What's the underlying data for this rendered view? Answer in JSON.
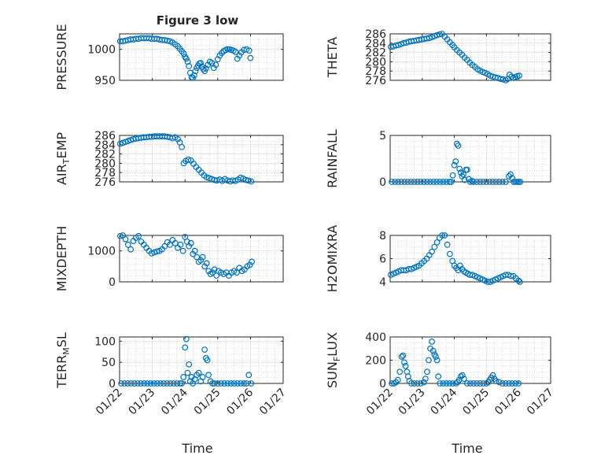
{
  "title": "Figure 3 low",
  "xlabel": "Time",
  "x_ticks": [
    "01/22",
    "01/23",
    "01/24",
    "01/25",
    "01/26",
    "01/27"
  ],
  "colors": {
    "marker": "#0072BD",
    "axis": "#262626",
    "grid": "#dfdfdf",
    "minor_grid": "#bdbdbd"
  },
  "chart_data": [
    {
      "type": "scatter",
      "ylabel": "PRESSURE",
      "ylim": [
        950,
        1025
      ],
      "yticks": [
        950,
        1000
      ],
      "grid": true,
      "x": [
        0.02,
        0.1,
        0.18,
        0.26,
        0.34,
        0.42,
        0.5,
        0.58,
        0.66,
        0.74,
        0.82,
        0.9,
        0.98,
        1.06,
        1.14,
        1.22,
        1.3,
        1.38,
        1.46,
        1.54,
        1.62,
        1.7,
        1.78,
        1.84,
        1.9,
        1.96,
        2.0,
        2.04,
        2.08,
        2.12,
        2.16,
        2.2,
        2.24,
        2.28,
        2.32,
        2.36,
        2.4,
        2.44,
        2.48,
        2.52,
        2.56,
        2.6,
        2.64,
        2.7,
        2.76,
        2.82,
        2.88,
        2.94,
        3.0,
        3.06,
        3.12,
        3.18,
        3.24,
        3.3,
        3.36,
        3.42,
        3.48,
        3.54,
        3.6,
        3.66,
        3.72,
        3.8,
        3.88,
        3.96,
        4.0
      ],
      "y": [
        1013,
        1013,
        1014,
        1015,
        1016,
        1016,
        1017,
        1017,
        1018,
        1018,
        1018,
        1018,
        1017,
        1017,
        1017,
        1016,
        1015,
        1015,
        1014,
        1013,
        1011,
        1008,
        1005,
        1001,
        997,
        993,
        988,
        985,
        980,
        973,
        962,
        955,
        954,
        958,
        965,
        970,
        974,
        977,
        978,
        972,
        968,
        965,
        969,
        975,
        980,
        978,
        970,
        975,
        984,
        990,
        994,
        997,
        999,
        1000,
        1000,
        999,
        998,
        996,
        985,
        990,
        995,
        999,
        1000,
        998,
        986
      ]
    },
    {
      "type": "scatter",
      "ylabel": "THETA",
      "ylim": [
        276,
        286
      ],
      "yticks": [
        276,
        278,
        280,
        282,
        284,
        286
      ],
      "grid": true,
      "x": [
        0.02,
        0.1,
        0.18,
        0.26,
        0.34,
        0.42,
        0.5,
        0.58,
        0.66,
        0.74,
        0.82,
        0.9,
        0.98,
        1.06,
        1.14,
        1.22,
        1.3,
        1.38,
        1.46,
        1.54,
        1.62,
        1.7,
        1.78,
        1.86,
        1.94,
        2.0,
        2.08,
        2.16,
        2.24,
        2.32,
        2.4,
        2.48,
        2.56,
        2.64,
        2.72,
        2.8,
        2.88,
        2.96,
        3.04,
        3.12,
        3.2,
        3.28,
        3.36,
        3.44,
        3.52,
        3.6,
        3.66,
        3.72,
        3.78,
        3.84,
        3.9,
        3.96,
        4.02
      ],
      "y": [
        283.2,
        283.3,
        283.5,
        283.6,
        283.8,
        284.0,
        284.1,
        284.3,
        284.4,
        284.5,
        284.6,
        284.7,
        284.8,
        284.9,
        285.0,
        285.1,
        285.3,
        285.5,
        285.7,
        285.9,
        286.0,
        285.4,
        284.8,
        284.2,
        283.6,
        283.1,
        282.5,
        282.0,
        281.5,
        280.9,
        280.4,
        279.8,
        279.3,
        278.9,
        278.4,
        278.1,
        277.8,
        277.6,
        277.3,
        277.0,
        276.8,
        276.6,
        276.5,
        276.3,
        276.2,
        276.0,
        276.3,
        277.2,
        276.8,
        276.5,
        276.7,
        276.9,
        277.0
      ]
    },
    {
      "type": "scatter",
      "ylabel": "AIR_TEMP",
      "ylim": [
        276,
        286
      ],
      "yticks": [
        276,
        278,
        280,
        282,
        284,
        286
      ],
      "grid": true,
      "x": [
        0.02,
        0.1,
        0.18,
        0.26,
        0.34,
        0.42,
        0.5,
        0.58,
        0.66,
        0.74,
        0.82,
        0.9,
        0.98,
        1.06,
        1.14,
        1.22,
        1.3,
        1.38,
        1.46,
        1.54,
        1.62,
        1.7,
        1.78,
        1.84,
        1.9,
        1.96,
        2.02,
        2.1,
        2.18,
        2.26,
        2.34,
        2.42,
        2.5,
        2.58,
        2.66,
        2.74,
        2.82,
        2.9,
        2.98,
        3.06,
        3.14,
        3.22,
        3.3,
        3.38,
        3.46,
        3.54,
        3.62,
        3.7,
        3.78,
        3.86,
        3.94,
        4.02
      ],
      "y": [
        284.2,
        284.4,
        284.6,
        284.8,
        285.0,
        285.2,
        285.3,
        285.4,
        285.5,
        285.6,
        285.6,
        285.7,
        285.7,
        285.8,
        285.8,
        285.8,
        285.8,
        285.8,
        285.7,
        285.6,
        285.4,
        285.6,
        285.2,
        284.5,
        283.5,
        280.0,
        280.5,
        280.8,
        280.6,
        279.9,
        279.2,
        278.6,
        278.0,
        277.4,
        277.0,
        276.8,
        276.6,
        276.4,
        276.3,
        276.5,
        276.2,
        276.6,
        276.3,
        276.1,
        276.3,
        276.2,
        276.5,
        276.9,
        276.7,
        276.4,
        276.3,
        276.1
      ]
    },
    {
      "type": "scatter",
      "ylabel": "RAINFALL",
      "ylim": [
        0,
        5
      ],
      "yticks": [
        0,
        5
      ],
      "grid": true,
      "x": [
        0.05,
        0.15,
        0.25,
        0.35,
        0.45,
        0.55,
        0.65,
        0.75,
        0.85,
        0.95,
        1.05,
        1.15,
        1.25,
        1.35,
        1.45,
        1.55,
        1.65,
        1.75,
        1.85,
        1.9,
        1.95,
        2.0,
        2.04,
        2.08,
        2.12,
        2.16,
        2.2,
        2.24,
        2.28,
        2.32,
        2.36,
        2.4,
        2.45,
        2.5,
        2.55,
        2.6,
        2.7,
        2.8,
        2.9,
        3.0,
        3.1,
        3.2,
        3.3,
        3.4,
        3.5,
        3.6,
        3.7,
        3.75,
        3.8,
        3.85,
        3.9,
        3.95,
        4.0,
        4.05
      ],
      "y": [
        0,
        0,
        0,
        0,
        0,
        0,
        0,
        0,
        0,
        0,
        0,
        0,
        0,
        0,
        0,
        0,
        0,
        0,
        0,
        0,
        0.7,
        1.8,
        2.2,
        4.1,
        3.9,
        1.4,
        1.0,
        0.6,
        0.8,
        0.2,
        1.3,
        1.3,
        0.3,
        0,
        0.1,
        0,
        0,
        0,
        0,
        0,
        0,
        0,
        0,
        0,
        0,
        0,
        0.6,
        0.8,
        0.4,
        0,
        0,
        0,
        0,
        0
      ]
    },
    {
      "type": "scatter",
      "ylabel": "MIXDEPTH",
      "ylim": [
        0,
        1500
      ],
      "yticks": [
        0,
        1000
      ],
      "grid": true,
      "x": [
        0.02,
        0.1,
        0.18,
        0.26,
        0.34,
        0.42,
        0.5,
        0.58,
        0.66,
        0.74,
        0.82,
        0.9,
        0.98,
        1.06,
        1.14,
        1.22,
        1.3,
        1.38,
        1.46,
        1.54,
        1.62,
        1.7,
        1.78,
        1.86,
        1.94,
        2.0,
        2.06,
        2.12,
        2.18,
        2.24,
        2.3,
        2.36,
        2.42,
        2.48,
        2.54,
        2.6,
        2.66,
        2.72,
        2.78,
        2.84,
        2.9,
        2.96,
        3.02,
        3.1,
        3.18,
        3.26,
        3.34,
        3.42,
        3.5,
        3.58,
        3.66,
        3.74,
        3.82,
        3.9,
        3.98,
        4.04
      ],
      "y": [
        1480,
        1500,
        1380,
        1200,
        1050,
        1320,
        1420,
        1480,
        1300,
        1200,
        1100,
        1000,
        920,
        950,
        980,
        1000,
        1050,
        1150,
        1280,
        1200,
        1350,
        1250,
        1100,
        1200,
        1000,
        1450,
        1300,
        1150,
        1250,
        900,
        1000,
        800,
        650,
        700,
        800,
        500,
        600,
        350,
        250,
        300,
        400,
        200,
        350,
        300,
        250,
        300,
        200,
        300,
        350,
        300,
        450,
        350,
        400,
        500,
        550,
        650
      ]
    },
    {
      "type": "scatter",
      "ylabel": "H2OMIXRA",
      "ylim": [
        4,
        8
      ],
      "yticks": [
        4,
        6,
        8
      ],
      "grid": true,
      "x": [
        0.02,
        0.1,
        0.18,
        0.26,
        0.34,
        0.42,
        0.5,
        0.58,
        0.66,
        0.74,
        0.82,
        0.9,
        0.98,
        1.06,
        1.14,
        1.22,
        1.3,
        1.38,
        1.46,
        1.54,
        1.62,
        1.7,
        1.78,
        1.86,
        1.94,
        2.0,
        2.06,
        2.12,
        2.18,
        2.24,
        2.3,
        2.36,
        2.42,
        2.48,
        2.56,
        2.64,
        2.72,
        2.8,
        2.88,
        2.96,
        3.04,
        3.12,
        3.2,
        3.28,
        3.36,
        3.44,
        3.52,
        3.6,
        3.68,
        3.76,
        3.84,
        3.92,
        4.0,
        4.04
      ],
      "y": [
        4.6,
        4.7,
        4.8,
        4.9,
        5.0,
        5.0,
        5.0,
        5.1,
        5.1,
        5.2,
        5.3,
        5.4,
        5.6,
        5.8,
        6.0,
        6.3,
        6.6,
        7.0,
        7.4,
        7.8,
        8.0,
        8.0,
        7.2,
        6.4,
        5.8,
        5.4,
        5.2,
        5.0,
        5.4,
        5.1,
        4.9,
        4.8,
        4.7,
        4.6,
        4.6,
        4.5,
        4.4,
        4.3,
        4.2,
        4.1,
        4.0,
        4.0,
        4.1,
        4.2,
        4.3,
        4.4,
        4.5,
        4.6,
        4.6,
        4.5,
        4.5,
        4.3,
        4.1,
        4.0
      ]
    },
    {
      "type": "scatter",
      "ylabel": "TERR_MSL",
      "ylim": [
        0,
        110
      ],
      "yticks": [
        0,
        50,
        100
      ],
      "grid": true,
      "x": [
        0.05,
        0.15,
        0.25,
        0.35,
        0.45,
        0.55,
        0.65,
        0.75,
        0.85,
        0.95,
        1.05,
        1.15,
        1.25,
        1.35,
        1.45,
        1.55,
        1.65,
        1.75,
        1.85,
        1.9,
        1.95,
        2.0,
        2.04,
        2.08,
        2.12,
        2.16,
        2.2,
        2.24,
        2.3,
        2.36,
        2.42,
        2.48,
        2.54,
        2.6,
        2.64,
        2.68,
        2.72,
        2.78,
        2.84,
        2.9,
        3.0,
        3.1,
        3.2,
        3.3,
        3.4,
        3.5,
        3.6,
        3.7,
        3.8,
        3.88,
        3.95,
        4.02
      ],
      "y": [
        0,
        0,
        0,
        0,
        0,
        0,
        0,
        0,
        0,
        0,
        0,
        0,
        0,
        0,
        0,
        0,
        0,
        0,
        0,
        0,
        15,
        85,
        105,
        25,
        45,
        5,
        15,
        0,
        10,
        20,
        25,
        5,
        15,
        80,
        60,
        55,
        20,
        5,
        0,
        0,
        0,
        0,
        0,
        0,
        0,
        0,
        0,
        0,
        0,
        0,
        20,
        0
      ]
    },
    {
      "type": "scatter",
      "ylabel": "SUN_FLUX",
      "ylim": [
        0,
        400
      ],
      "yticks": [
        0,
        200,
        400
      ],
      "grid": true,
      "x": [
        0.05,
        0.12,
        0.18,
        0.24,
        0.3,
        0.36,
        0.4,
        0.44,
        0.48,
        0.52,
        0.56,
        0.6,
        0.66,
        0.75,
        0.85,
        0.95,
        1.05,
        1.1,
        1.15,
        1.2,
        1.25,
        1.3,
        1.34,
        1.38,
        1.42,
        1.46,
        1.5,
        1.55,
        1.65,
        1.75,
        1.85,
        1.95,
        2.05,
        2.1,
        2.15,
        2.2,
        2.25,
        2.3,
        2.4,
        2.5,
        2.6,
        2.7,
        2.8,
        2.9,
        3.0,
        3.05,
        3.1,
        3.15,
        3.2,
        3.25,
        3.3,
        3.4,
        3.5,
        3.6,
        3.7,
        3.8,
        3.9,
        4.0
      ],
      "y": [
        0,
        0,
        10,
        30,
        100,
        230,
        240,
        180,
        150,
        100,
        60,
        20,
        0,
        0,
        0,
        0,
        10,
        40,
        100,
        200,
        300,
        360,
        280,
        250,
        230,
        200,
        60,
        0,
        0,
        0,
        0,
        0,
        0,
        10,
        30,
        60,
        70,
        40,
        0,
        0,
        0,
        0,
        0,
        0,
        0,
        10,
        30,
        50,
        70,
        40,
        20,
        10,
        0,
        0,
        0,
        0,
        0,
        0
      ]
    }
  ]
}
